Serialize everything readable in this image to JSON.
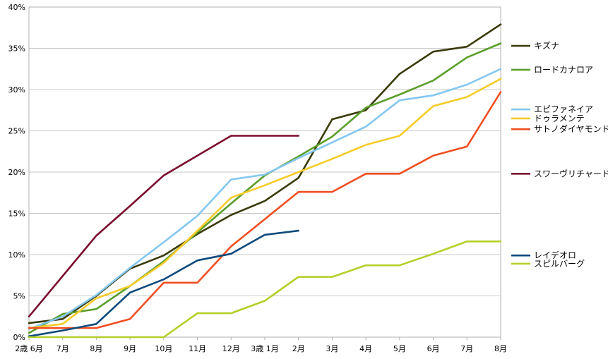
{
  "chart_data": {
    "type": "line",
    "title": "",
    "xlabel": "",
    "ylabel": "",
    "categories": [
      "2歳 6月",
      "7月",
      "8月",
      "9月",
      "10月",
      "11月",
      "12月",
      "3歳 1月",
      "2月",
      "3月",
      "4月",
      "5月",
      "6月",
      "7月",
      "8月"
    ],
    "ylim": [
      0,
      40
    ],
    "yticks": [
      0,
      5,
      10,
      15,
      20,
      25,
      30,
      35,
      40
    ],
    "ytick_labels": [
      "0%",
      "5%",
      "10%",
      "15%",
      "20%",
      "25%",
      "30%",
      "35%",
      "40%"
    ],
    "grid": "horizontal",
    "legend_position": "right",
    "series": [
      {
        "name": "キズナ",
        "color": "#3a3a0a",
        "legend_y": 35.3,
        "values": [
          1.7,
          2.2,
          5.0,
          8.3,
          9.9,
          12.5,
          14.8,
          16.5,
          19.3,
          26.4,
          27.5,
          31.9,
          34.6,
          35.2,
          37.9
        ]
      },
      {
        "name": "ロードカナロア",
        "color": "#5a9e2a",
        "legend_y": 32.4,
        "values": [
          0.5,
          2.8,
          3.4,
          6.2,
          9.2,
          12.7,
          16.2,
          19.6,
          21.9,
          24.3,
          27.8,
          29.4,
          31.1,
          33.9,
          35.6
        ]
      },
      {
        "name": "エピファネイア",
        "color": "#85c7f0",
        "legend_y": 27.6,
        "values": [
          1.0,
          2.5,
          5.1,
          8.4,
          11.5,
          14.7,
          19.1,
          19.7,
          21.7,
          23.6,
          25.5,
          28.7,
          29.3,
          30.6,
          32.5
        ]
      },
      {
        "name": "ドゥラメンテ",
        "color": "#f5cc2a",
        "legend_y": 26.5,
        "values": [
          1.1,
          1.6,
          4.7,
          6.2,
          9.0,
          12.9,
          16.9,
          18.4,
          20.0,
          21.6,
          23.3,
          24.4,
          28.0,
          29.1,
          31.3
        ]
      },
      {
        "name": "サトノダイヤモンド",
        "color": "#f04e22",
        "legend_y": 25.2,
        "values": [
          1.1,
          1.1,
          1.1,
          2.2,
          6.6,
          6.6,
          11.0,
          14.3,
          17.6,
          17.6,
          19.8,
          19.8,
          22.0,
          23.1,
          29.7
        ]
      },
      {
        "name": "スワーヴリチャード",
        "color": "#7a0e2c",
        "legend_y": 19.8,
        "values": [
          2.5,
          7.4,
          12.3,
          15.9,
          19.6,
          22.0,
          24.4,
          24.4,
          24.4,
          null,
          null,
          null,
          null,
          null,
          null
        ]
      },
      {
        "name": "レイデオロ",
        "color": "#0e4a7c",
        "legend_y": 9.9,
        "values": [
          0.1,
          0.8,
          1.6,
          5.4,
          7.0,
          9.3,
          10.1,
          12.4,
          12.9,
          null,
          null,
          null,
          null,
          null,
          null
        ]
      },
      {
        "name": "スピルバーグ",
        "color": "#b5cf27",
        "legend_y": 8.9,
        "values": [
          0,
          0,
          0,
          0,
          0,
          2.9,
          2.9,
          4.4,
          7.3,
          7.3,
          8.7,
          8.7,
          10.1,
          11.6,
          11.6
        ]
      }
    ]
  }
}
